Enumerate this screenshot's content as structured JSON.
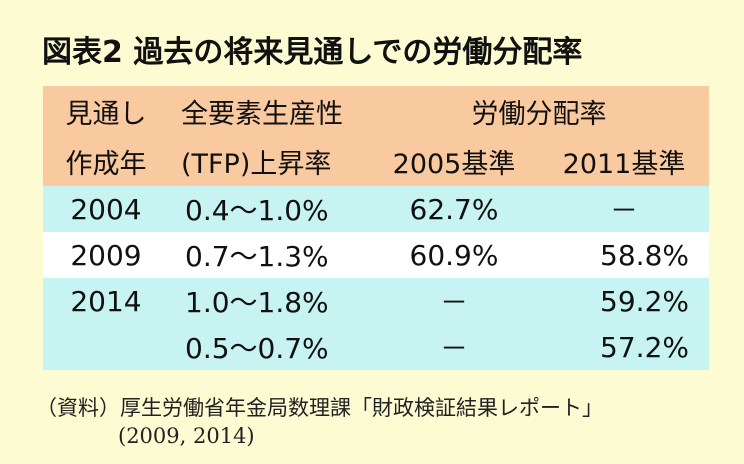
{
  "title": "図表2 過去の将来見通しでの労働分配率",
  "header": {
    "col1_line1": "見通し",
    "col1_line2": "作成年",
    "col2_line1": "全要素生産性",
    "col2_line2": "(TFP)上昇率",
    "group_label": "労働分配率",
    "col3": "2005基準",
    "col4": "2011基準"
  },
  "rows": [
    {
      "year": "2004",
      "tfp": "0.4～1.0%",
      "base2005": "62.7%",
      "base2011": "－"
    },
    {
      "year": "2009",
      "tfp": "0.7～1.3%",
      "base2005": "60.9%",
      "base2011": "58.8%"
    },
    {
      "year": "2014",
      "tfp": "1.0～1.8%",
      "base2005": "－",
      "base2011": "59.2%"
    },
    {
      "year": "",
      "tfp": "0.5～0.7%",
      "base2005": "－",
      "base2011": "57.2%"
    }
  ],
  "source_line1": "（資料）厚生労働省年金局数理課「財政検証結果レポート」",
  "source_line2": "(2009, 2014)",
  "colors": {
    "background": "#fdfbd2",
    "header": "#f9c9a0",
    "row_cyan": "#c7f3f3",
    "row_white": "#ffffff"
  }
}
